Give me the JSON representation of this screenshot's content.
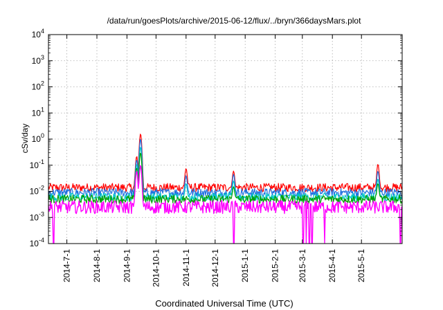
{
  "chart_data": {
    "type": "line",
    "title": "/data/run/goesPlots/archive/2015-06-12/flux/../bryn/366daysMars.plot",
    "xlabel": "Coordinated Universal Time (UTC)",
    "ylabel": "cSv/day",
    "x_range": [
      "2014-06-12",
      "2015-06-12"
    ],
    "ylim": [
      0.0001,
      10000
    ],
    "yscale": "log",
    "grid": true,
    "legend": "none",
    "y_ticks": [
      {
        "base": "10",
        "exp": "-4",
        "value": 0.0001
      },
      {
        "base": "10",
        "exp": "-3",
        "value": 0.001
      },
      {
        "base": "10",
        "exp": "-2",
        "value": 0.01
      },
      {
        "base": "10",
        "exp": "-1",
        "value": 0.1
      },
      {
        "base": "10",
        "exp": "0",
        "value": 1
      },
      {
        "base": "10",
        "exp": "1",
        "value": 10
      },
      {
        "base": "10",
        "exp": "2",
        "value": 100
      },
      {
        "base": "10",
        "exp": "3",
        "value": 1000
      },
      {
        "base": "10",
        "exp": "4",
        "value": 10000
      }
    ],
    "x_ticks": [
      {
        "label": "2014-7-1",
        "date": "2014-07-01"
      },
      {
        "label": "2014-8-1",
        "date": "2014-08-01"
      },
      {
        "label": "2014-9-1",
        "date": "2014-09-01"
      },
      {
        "label": "2014-10-1",
        "date": "2014-10-01"
      },
      {
        "label": "2014-11-1",
        "date": "2014-11-01"
      },
      {
        "label": "2014-12-1",
        "date": "2014-12-01"
      },
      {
        "label": "2015-1-1",
        "date": "2015-01-01"
      },
      {
        "label": "2015-2-1",
        "date": "2015-02-01"
      },
      {
        "label": "2015-3-1",
        "date": "2015-03-01"
      },
      {
        "label": "2015-4-1",
        "date": "2015-04-01"
      },
      {
        "label": "2015-5-1",
        "date": "2015-05-01"
      }
    ],
    "series": [
      {
        "color": "#ff0000",
        "baseline": 0.014,
        "peaks": [
          [
            "2014-09-11",
            0.22
          ],
          [
            "2014-09-15",
            1.6
          ],
          [
            "2014-11-01",
            0.075
          ],
          [
            "2014-12-20",
            0.06
          ],
          [
            "2015-05-18",
            0.11
          ]
        ]
      },
      {
        "color": "#1f6fe0",
        "baseline": 0.009,
        "peaks": [
          [
            "2014-09-11",
            0.16
          ],
          [
            "2014-09-15",
            1.0
          ],
          [
            "2014-11-01",
            0.04
          ],
          [
            "2014-12-20",
            0.045
          ],
          [
            "2015-05-18",
            0.06
          ]
        ]
      },
      {
        "color": "#00c8c8",
        "baseline": 0.006,
        "peaks": [
          [
            "2014-09-11",
            0.11
          ],
          [
            "2014-09-15",
            0.5
          ],
          [
            "2014-11-01",
            0.02
          ],
          [
            "2014-12-20",
            0.025
          ],
          [
            "2015-05-18",
            0.03
          ]
        ]
      },
      {
        "color": "#00a000",
        "baseline": 0.005,
        "peaks": [
          [
            "2014-09-11",
            0.08
          ],
          [
            "2014-09-15",
            0.3
          ],
          [
            "2014-12-20",
            0.015
          ],
          [
            "2015-05-18",
            0.02
          ]
        ]
      },
      {
        "color": "#ff00ff",
        "baseline": 0.0025,
        "peaks": [
          [
            "2014-09-11",
            0.06
          ],
          [
            "2014-09-15",
            0.1
          ]
        ],
        "dropouts": [
          "2014-06-17",
          "2014-12-20",
          "2015-03-02",
          "2015-03-05",
          "2015-03-08",
          "2015-03-11",
          "2015-03-24",
          "2015-06-10"
        ]
      }
    ]
  }
}
